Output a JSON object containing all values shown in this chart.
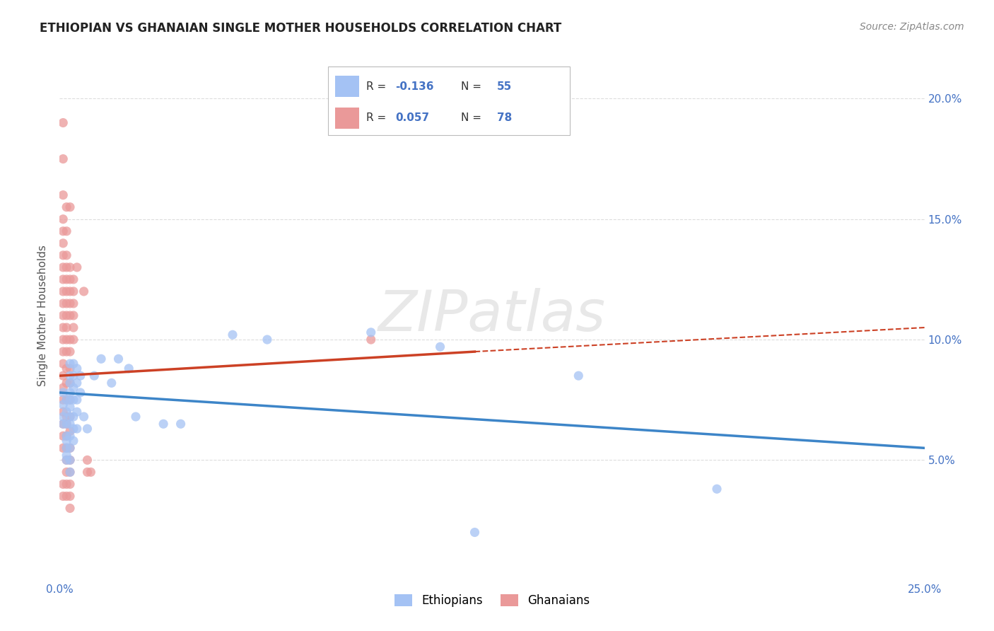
{
  "title": "ETHIOPIAN VS GHANAIAN SINGLE MOTHER HOUSEHOLDS CORRELATION CHART",
  "source": "Source: ZipAtlas.com",
  "ylabel": "Single Mother Households",
  "xlim": [
    0.0,
    0.25
  ],
  "ylim": [
    0.0,
    0.22
  ],
  "xticks": [
    0.0,
    0.25
  ],
  "xlabels": [
    "0.0%",
    "25.0%"
  ],
  "yticks": [
    0.05,
    0.1,
    0.15,
    0.2
  ],
  "ylabels": [
    "5.0%",
    "10.0%",
    "15.0%",
    "20.0%"
  ],
  "ethiopian_color": "#a4c2f4",
  "ghanaian_color": "#ea9999",
  "ethiopian_line_color": "#3d85c8",
  "ghanaian_line_color": "#cc4125",
  "ethiopian_r": -0.136,
  "ethiopian_n": 55,
  "ghanaian_r": 0.057,
  "ghanaian_n": 78,
  "ethiopian_scatter": [
    [
      0.001,
      0.078
    ],
    [
      0.001,
      0.073
    ],
    [
      0.001,
      0.068
    ],
    [
      0.001,
      0.065
    ],
    [
      0.002,
      0.075
    ],
    [
      0.002,
      0.07
    ],
    [
      0.002,
      0.065
    ],
    [
      0.002,
      0.06
    ],
    [
      0.002,
      0.058
    ],
    [
      0.002,
      0.055
    ],
    [
      0.002,
      0.052
    ],
    [
      0.002,
      0.05
    ],
    [
      0.003,
      0.09
    ],
    [
      0.003,
      0.085
    ],
    [
      0.003,
      0.082
    ],
    [
      0.003,
      0.078
    ],
    [
      0.003,
      0.075
    ],
    [
      0.003,
      0.072
    ],
    [
      0.003,
      0.068
    ],
    [
      0.003,
      0.065
    ],
    [
      0.003,
      0.06
    ],
    [
      0.003,
      0.055
    ],
    [
      0.003,
      0.05
    ],
    [
      0.003,
      0.045
    ],
    [
      0.004,
      0.09
    ],
    [
      0.004,
      0.085
    ],
    [
      0.004,
      0.08
    ],
    [
      0.004,
      0.075
    ],
    [
      0.004,
      0.068
    ],
    [
      0.004,
      0.063
    ],
    [
      0.004,
      0.058
    ],
    [
      0.005,
      0.088
    ],
    [
      0.005,
      0.082
    ],
    [
      0.005,
      0.075
    ],
    [
      0.005,
      0.07
    ],
    [
      0.005,
      0.063
    ],
    [
      0.006,
      0.085
    ],
    [
      0.006,
      0.078
    ],
    [
      0.007,
      0.068
    ],
    [
      0.008,
      0.063
    ],
    [
      0.01,
      0.085
    ],
    [
      0.012,
      0.092
    ],
    [
      0.015,
      0.082
    ],
    [
      0.017,
      0.092
    ],
    [
      0.02,
      0.088
    ],
    [
      0.022,
      0.068
    ],
    [
      0.03,
      0.065
    ],
    [
      0.035,
      0.065
    ],
    [
      0.05,
      0.102
    ],
    [
      0.06,
      0.1
    ],
    [
      0.09,
      0.103
    ],
    [
      0.11,
      0.097
    ],
    [
      0.15,
      0.085
    ],
    [
      0.19,
      0.038
    ],
    [
      0.12,
      0.02
    ]
  ],
  "ghanaian_scatter": [
    [
      0.001,
      0.19
    ],
    [
      0.001,
      0.175
    ],
    [
      0.001,
      0.16
    ],
    [
      0.001,
      0.15
    ],
    [
      0.001,
      0.145
    ],
    [
      0.001,
      0.14
    ],
    [
      0.001,
      0.135
    ],
    [
      0.001,
      0.13
    ],
    [
      0.001,
      0.125
    ],
    [
      0.001,
      0.12
    ],
    [
      0.001,
      0.115
    ],
    [
      0.001,
      0.11
    ],
    [
      0.001,
      0.105
    ],
    [
      0.001,
      0.1
    ],
    [
      0.001,
      0.095
    ],
    [
      0.001,
      0.09
    ],
    [
      0.001,
      0.085
    ],
    [
      0.001,
      0.08
    ],
    [
      0.001,
      0.075
    ],
    [
      0.001,
      0.07
    ],
    [
      0.001,
      0.065
    ],
    [
      0.001,
      0.06
    ],
    [
      0.001,
      0.055
    ],
    [
      0.001,
      0.04
    ],
    [
      0.001,
      0.035
    ],
    [
      0.002,
      0.155
    ],
    [
      0.002,
      0.145
    ],
    [
      0.002,
      0.135
    ],
    [
      0.002,
      0.13
    ],
    [
      0.002,
      0.125
    ],
    [
      0.002,
      0.12
    ],
    [
      0.002,
      0.115
    ],
    [
      0.002,
      0.11
    ],
    [
      0.002,
      0.105
    ],
    [
      0.002,
      0.1
    ],
    [
      0.002,
      0.095
    ],
    [
      0.002,
      0.088
    ],
    [
      0.002,
      0.082
    ],
    [
      0.002,
      0.075
    ],
    [
      0.002,
      0.068
    ],
    [
      0.002,
      0.065
    ],
    [
      0.002,
      0.06
    ],
    [
      0.002,
      0.055
    ],
    [
      0.002,
      0.05
    ],
    [
      0.002,
      0.045
    ],
    [
      0.002,
      0.04
    ],
    [
      0.002,
      0.035
    ],
    [
      0.003,
      0.155
    ],
    [
      0.003,
      0.13
    ],
    [
      0.003,
      0.125
    ],
    [
      0.003,
      0.12
    ],
    [
      0.003,
      0.115
    ],
    [
      0.003,
      0.11
    ],
    [
      0.003,
      0.1
    ],
    [
      0.003,
      0.095
    ],
    [
      0.003,
      0.088
    ],
    [
      0.003,
      0.082
    ],
    [
      0.003,
      0.075
    ],
    [
      0.003,
      0.068
    ],
    [
      0.003,
      0.062
    ],
    [
      0.003,
      0.055
    ],
    [
      0.003,
      0.05
    ],
    [
      0.003,
      0.045
    ],
    [
      0.003,
      0.04
    ],
    [
      0.003,
      0.035
    ],
    [
      0.003,
      0.03
    ],
    [
      0.004,
      0.125
    ],
    [
      0.004,
      0.12
    ],
    [
      0.004,
      0.115
    ],
    [
      0.004,
      0.11
    ],
    [
      0.004,
      0.105
    ],
    [
      0.004,
      0.1
    ],
    [
      0.005,
      0.13
    ],
    [
      0.007,
      0.12
    ],
    [
      0.008,
      0.05
    ],
    [
      0.008,
      0.045
    ],
    [
      0.009,
      0.045
    ],
    [
      0.09,
      0.1
    ]
  ],
  "watermark_text": "ZIPatlas",
  "background_color": "#ffffff",
  "grid_color": "#dddddd",
  "title_color": "#222222",
  "source_color": "#888888",
  "tick_label_color": "#4472c4",
  "ylabel_color": "#555555"
}
